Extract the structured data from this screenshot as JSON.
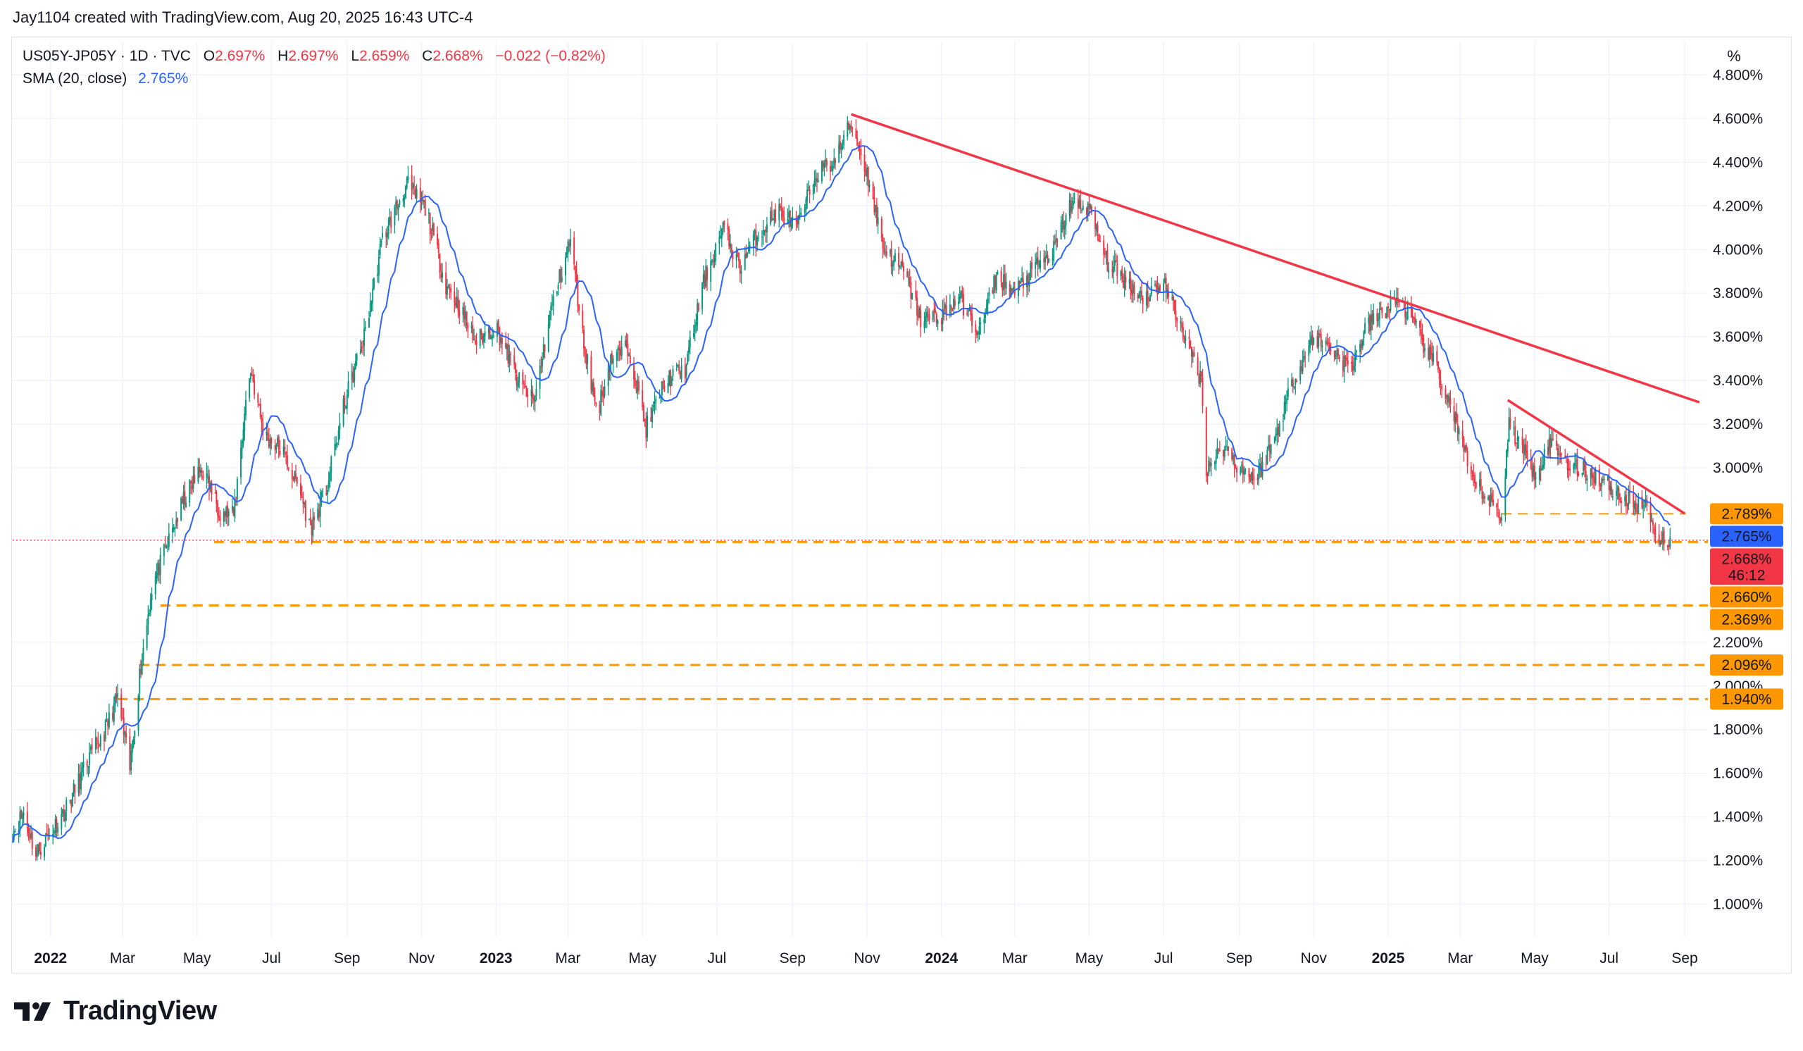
{
  "credit": "Jay1104 created with TradingView.com, Aug 20, 2025 16:43 UTC-4",
  "legend": {
    "symbol": "US05Y-JP05Y · 1D · TVC",
    "open_label": "O",
    "open": "2.697%",
    "high_label": "H",
    "high": "2.697%",
    "low_label": "L",
    "low": "2.659%",
    "close_label": "C",
    "close": "2.668%",
    "change": "−0.022 (−0.82%)",
    "sma_label": "SMA (20, close)",
    "sma_value": "2.765%"
  },
  "unit_button": "%",
  "brand": "TradingView",
  "colors": {
    "up": "#089981",
    "down": "#f23645",
    "sma": "#2962ff",
    "trendline": "#f23645",
    "support": "#ff9800",
    "grid": "#f0f3fa"
  },
  "chart_data": {
    "type": "candlestick",
    "x_range": [
      "2021-12-01",
      "2025-09-20"
    ],
    "ylim": [
      0.85,
      4.95
    ],
    "y_ticks": [
      "4.800%",
      "4.600%",
      "4.400%",
      "4.200%",
      "4.000%",
      "3.800%",
      "3.600%",
      "3.400%",
      "3.200%",
      "3.000%",
      "2.200%",
      "2.000%",
      "1.800%",
      "1.600%",
      "1.400%",
      "1.200%",
      "1.000%"
    ],
    "y_tick_values": [
      4.8,
      4.6,
      4.4,
      4.2,
      4.0,
      3.8,
      3.6,
      3.4,
      3.2,
      3.0,
      2.2,
      2.0,
      1.8,
      1.6,
      1.4,
      1.2,
      1.0
    ],
    "x_ticks": [
      {
        "label": "2022",
        "date": "2022-01-01",
        "bold": true
      },
      {
        "label": "Mar",
        "date": "2022-03-01"
      },
      {
        "label": "May",
        "date": "2022-05-01"
      },
      {
        "label": "Jul",
        "date": "2022-07-01"
      },
      {
        "label": "Sep",
        "date": "2022-09-01"
      },
      {
        "label": "Nov",
        "date": "2022-11-01"
      },
      {
        "label": "2023",
        "date": "2023-01-01",
        "bold": true
      },
      {
        "label": "Mar",
        "date": "2023-03-01"
      },
      {
        "label": "May",
        "date": "2023-05-01"
      },
      {
        "label": "Jul",
        "date": "2023-07-01"
      },
      {
        "label": "Sep",
        "date": "2023-09-01"
      },
      {
        "label": "Nov",
        "date": "2023-11-01"
      },
      {
        "label": "2024",
        "date": "2024-01-01",
        "bold": true
      },
      {
        "label": "Mar",
        "date": "2024-03-01"
      },
      {
        "label": "May",
        "date": "2024-05-01"
      },
      {
        "label": "Jul",
        "date": "2024-07-01"
      },
      {
        "label": "Sep",
        "date": "2024-09-01"
      },
      {
        "label": "Nov",
        "date": "2024-11-01"
      },
      {
        "label": "2025",
        "date": "2025-01-01",
        "bold": true
      },
      {
        "label": "Mar",
        "date": "2025-03-01"
      },
      {
        "label": "May",
        "date": "2025-05-01"
      },
      {
        "label": "Jul",
        "date": "2025-07-01"
      },
      {
        "label": "Sep",
        "date": "2025-09-01"
      }
    ],
    "price_path": [
      [
        "2021-12-01",
        1.33
      ],
      [
        "2021-12-10",
        1.42
      ],
      [
        "2021-12-20",
        1.23
      ],
      [
        "2021-12-31",
        1.32
      ],
      [
        "2022-01-15",
        1.45
      ],
      [
        "2022-01-31",
        1.65
      ],
      [
        "2022-02-15",
        1.8
      ],
      [
        "2022-02-25",
        1.95
      ],
      [
        "2022-03-07",
        1.62
      ],
      [
        "2022-03-15",
        2.05
      ],
      [
        "2022-03-25",
        2.45
      ],
      [
        "2022-04-05",
        2.62
      ],
      [
        "2022-04-20",
        2.85
      ],
      [
        "2022-05-05",
        3.0
      ],
      [
        "2022-05-20",
        2.8
      ],
      [
        "2022-05-31",
        2.78
      ],
      [
        "2022-06-10",
        3.3
      ],
      [
        "2022-06-14",
        3.45
      ],
      [
        "2022-06-25",
        3.15
      ],
      [
        "2022-07-10",
        3.08
      ],
      [
        "2022-07-25",
        2.88
      ],
      [
        "2022-08-02",
        2.72
      ],
      [
        "2022-08-15",
        2.9
      ],
      [
        "2022-08-30",
        3.3
      ],
      [
        "2022-09-15",
        3.6
      ],
      [
        "2022-09-30",
        4.05
      ],
      [
        "2022-10-20",
        4.3
      ],
      [
        "2022-11-05",
        4.18
      ],
      [
        "2022-11-20",
        3.85
      ],
      [
        "2022-12-01",
        3.75
      ],
      [
        "2022-12-15",
        3.58
      ],
      [
        "2023-01-01",
        3.65
      ],
      [
        "2023-01-19",
        3.4
      ],
      [
        "2023-02-01",
        3.3
      ],
      [
        "2023-02-15",
        3.72
      ],
      [
        "2023-03-03",
        4.05
      ],
      [
        "2023-03-13",
        3.6
      ],
      [
        "2023-03-25",
        3.25
      ],
      [
        "2023-04-05",
        3.5
      ],
      [
        "2023-04-20",
        3.55
      ],
      [
        "2023-05-04",
        3.18
      ],
      [
        "2023-05-20",
        3.4
      ],
      [
        "2023-06-05",
        3.45
      ],
      [
        "2023-06-20",
        3.85
      ],
      [
        "2023-07-06",
        4.1
      ],
      [
        "2023-07-20",
        3.92
      ],
      [
        "2023-08-01",
        4.05
      ],
      [
        "2023-08-20",
        4.18
      ],
      [
        "2023-09-05",
        4.1
      ],
      [
        "2023-09-20",
        4.35
      ],
      [
        "2023-10-05",
        4.4
      ],
      [
        "2023-10-19",
        4.58
      ],
      [
        "2023-11-01",
        4.35
      ],
      [
        "2023-11-15",
        4.0
      ],
      [
        "2023-12-01",
        3.9
      ],
      [
        "2023-12-15",
        3.68
      ],
      [
        "2024-01-01",
        3.7
      ],
      [
        "2024-01-15",
        3.78
      ],
      [
        "2024-02-01",
        3.62
      ],
      [
        "2024-02-15",
        3.88
      ],
      [
        "2024-03-01",
        3.8
      ],
      [
        "2024-03-15",
        3.9
      ],
      [
        "2024-04-01",
        3.98
      ],
      [
        "2024-04-15",
        4.2
      ],
      [
        "2024-04-30",
        4.2
      ],
      [
        "2024-05-15",
        3.95
      ],
      [
        "2024-06-01",
        3.85
      ],
      [
        "2024-06-15",
        3.78
      ],
      [
        "2024-07-01",
        3.85
      ],
      [
        "2024-07-15",
        3.65
      ],
      [
        "2024-08-01",
        3.4
      ],
      [
        "2024-08-05",
        3.0
      ],
      [
        "2024-08-20",
        3.1
      ],
      [
        "2024-09-01",
        3.0
      ],
      [
        "2024-09-15",
        2.95
      ],
      [
        "2024-10-01",
        3.15
      ],
      [
        "2024-10-15",
        3.4
      ],
      [
        "2024-11-01",
        3.6
      ],
      [
        "2024-11-15",
        3.55
      ],
      [
        "2024-12-01",
        3.45
      ],
      [
        "2024-12-15",
        3.65
      ],
      [
        "2025-01-10",
        3.78
      ],
      [
        "2025-01-25",
        3.62
      ],
      [
        "2025-02-10",
        3.45
      ],
      [
        "2025-02-25",
        3.22
      ],
      [
        "2025-03-10",
        2.95
      ],
      [
        "2025-03-25",
        2.85
      ],
      [
        "2025-04-04",
        2.78
      ],
      [
        "2025-04-10",
        3.2
      ],
      [
        "2025-04-20",
        3.1
      ],
      [
        "2025-05-01",
        2.98
      ],
      [
        "2025-05-15",
        3.12
      ],
      [
        "2025-06-01",
        3.0
      ],
      [
        "2025-06-15",
        2.98
      ],
      [
        "2025-07-01",
        2.92
      ],
      [
        "2025-07-15",
        2.85
      ],
      [
        "2025-08-01",
        2.82
      ],
      [
        "2025-08-10",
        2.68
      ],
      [
        "2025-08-20",
        2.668
      ]
    ],
    "sma_label": "SMA (20, close)",
    "trendlines": [
      {
        "from": [
          "2023-10-19",
          4.62
        ],
        "to": [
          "2025-09-13",
          3.3
        ]
      },
      {
        "from": [
          "2025-04-09",
          3.31
        ],
        "to": [
          "2025-09-01",
          2.79
        ]
      }
    ],
    "support_levels": [
      {
        "value": 2.66,
        "label": "2.660%",
        "from": "2022-05-15"
      },
      {
        "value": 2.369,
        "label": "2.369%",
        "from": "2022-04-01"
      },
      {
        "value": 2.096,
        "label": "2.096%",
        "from": "2022-03-15"
      },
      {
        "value": 1.94,
        "label": "1.940%",
        "from": "2022-02-25"
      },
      {
        "value": 2.789,
        "label": "2.789%",
        "from": "2025-04-04"
      }
    ],
    "price_markers": [
      {
        "value": 2.789,
        "label": "2.789%",
        "color": "#ff9800"
      },
      {
        "value": 2.765,
        "label": "2.765%",
        "color": "#2962ff"
      },
      {
        "value": 2.668,
        "label": "2.668%",
        "sub": "46:12",
        "color": "#f23645"
      },
      {
        "value": 2.66,
        "label": "2.660%",
        "color": "#ff9800"
      },
      {
        "value": 2.369,
        "label": "2.369%",
        "color": "#ff9800"
      },
      {
        "value": 2.096,
        "label": "2.096%",
        "color": "#ff9800"
      },
      {
        "value": 1.94,
        "label": "1.940%",
        "color": "#ff9800"
      }
    ],
    "last_price": 2.668
  }
}
